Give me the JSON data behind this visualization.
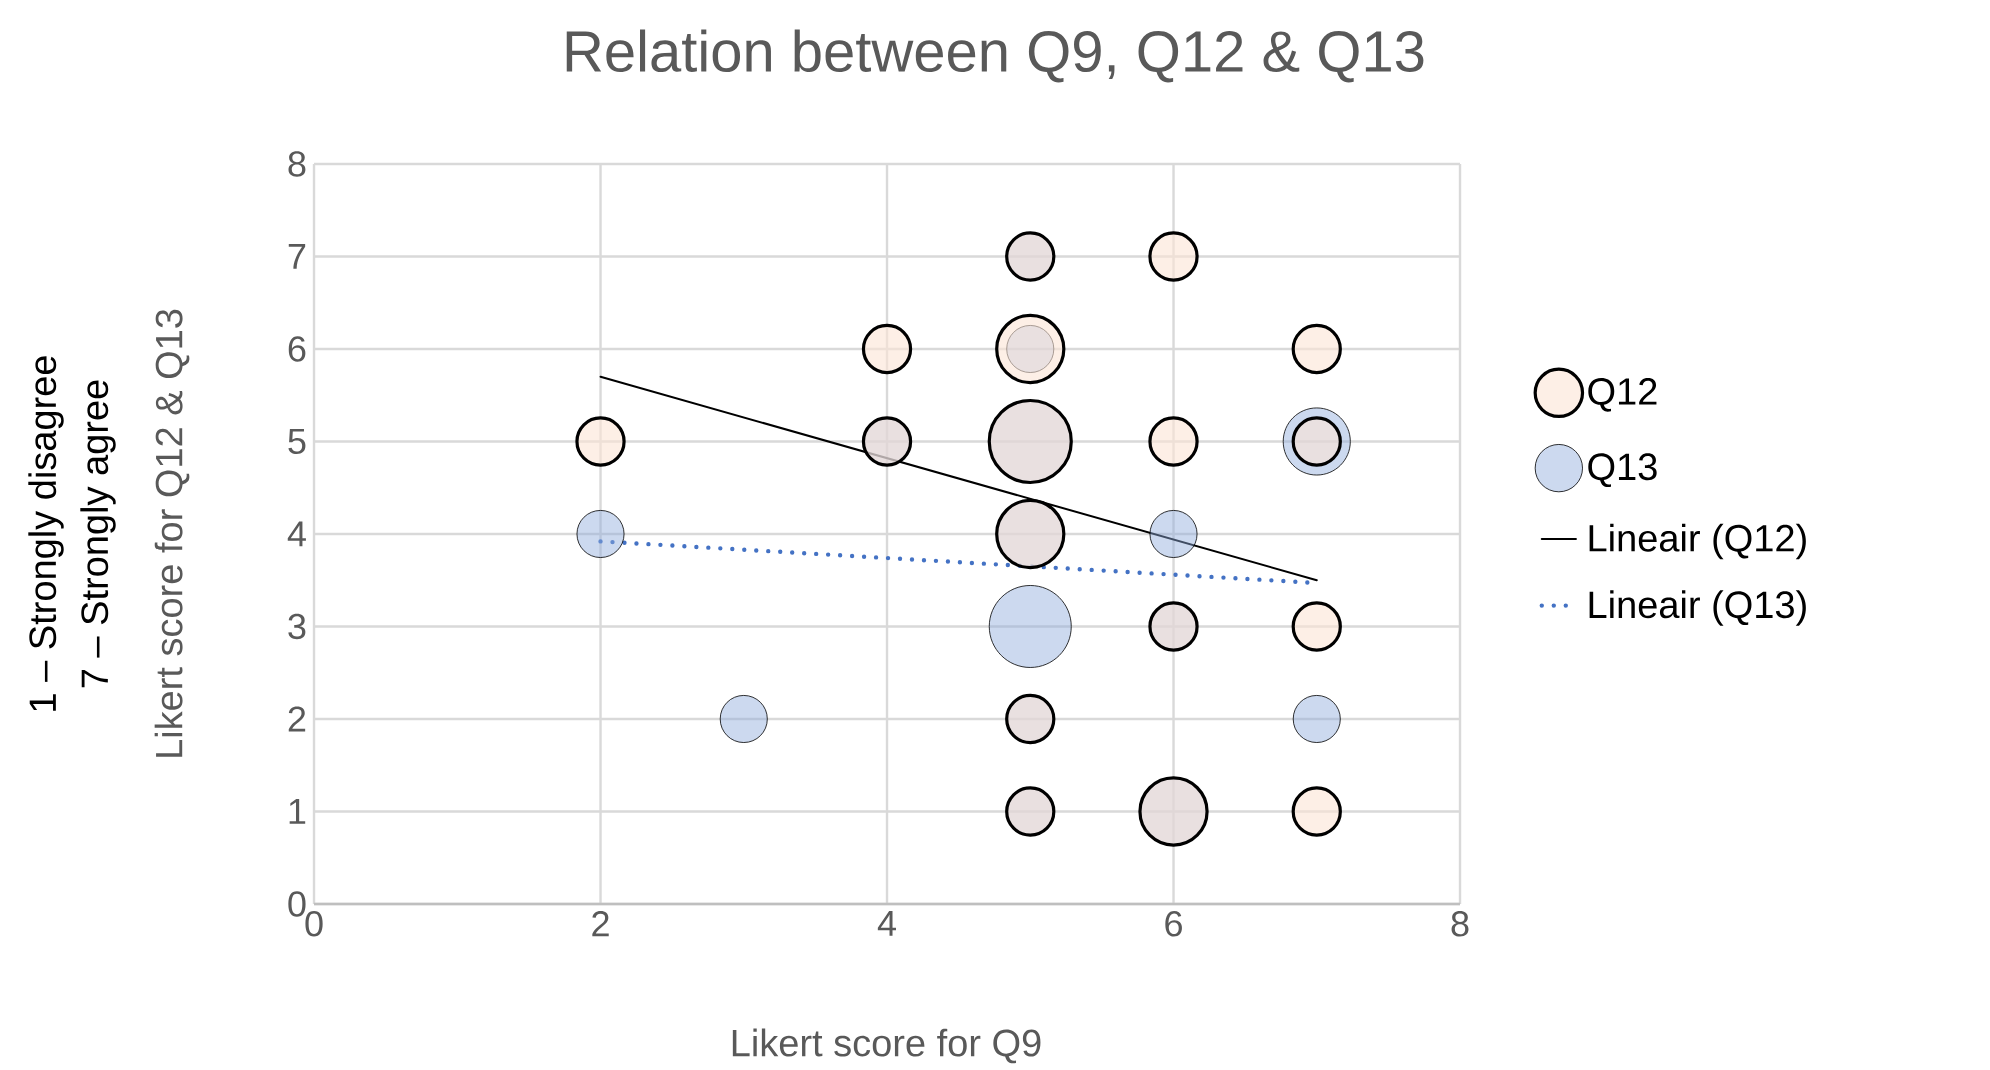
{
  "chart_data": {
    "type": "bubble",
    "title": "Relation between Q9, Q12 & Q13",
    "xlabel": "Likert score for Q9",
    "ylabel": "Likert score for Q12 & Q13",
    "annotations": [
      "1 – Strongly disagree",
      "7 – Strongly agree"
    ],
    "xlim": [
      0,
      8
    ],
    "ylim": [
      0,
      8
    ],
    "xticks": [
      0,
      2,
      4,
      6,
      8
    ],
    "yticks": [
      0,
      1,
      2,
      3,
      4,
      5,
      6,
      7,
      8
    ],
    "grid": true,
    "legend": "right",
    "series": [
      {
        "name": "Q12",
        "color": "#fbe5d6",
        "x": [
          2,
          4,
          4,
          5,
          5,
          5,
          5,
          5,
          5,
          6,
          6,
          6,
          6,
          7,
          7,
          7,
          7
        ],
        "values": [
          5,
          6,
          5,
          7,
          6,
          5,
          4,
          2,
          1,
          7,
          5,
          3,
          1,
          6,
          5,
          3,
          1
        ],
        "sizes": [
          0.33,
          0.33,
          0.33,
          0.33,
          0.67,
          1,
          0.67,
          0.33,
          0.33,
          0.33,
          0.33,
          0.33,
          0.67,
          0.33,
          0.33,
          0.33,
          0.33
        ]
      },
      {
        "name": "Q13",
        "color": "#8faadc",
        "x": [
          2,
          3,
          4,
          5,
          5,
          5,
          5,
          5,
          5,
          5,
          6,
          6,
          6,
          7,
          7
        ],
        "values": [
          4,
          2,
          5,
          7,
          6,
          5,
          4,
          3,
          2,
          1,
          4,
          3,
          1,
          5,
          2
        ],
        "sizes": [
          0.33,
          0.33,
          0.33,
          0.33,
          0.33,
          1,
          0.67,
          1,
          0.33,
          0.33,
          0.33,
          0.33,
          0.67,
          0.67,
          0.33
        ]
      },
      {
        "name": "Lineair (Q12)",
        "type": "line",
        "color": "#000000",
        "line_style": "solid",
        "x": [
          2,
          7
        ],
        "values": [
          5.7,
          3.5
        ]
      },
      {
        "name": "Lineair (Q13)",
        "type": "line",
        "color": "#4472c4",
        "line_style": "dotted",
        "x": [
          2,
          7
        ],
        "values": [
          3.92,
          3.47
        ]
      }
    ]
  }
}
